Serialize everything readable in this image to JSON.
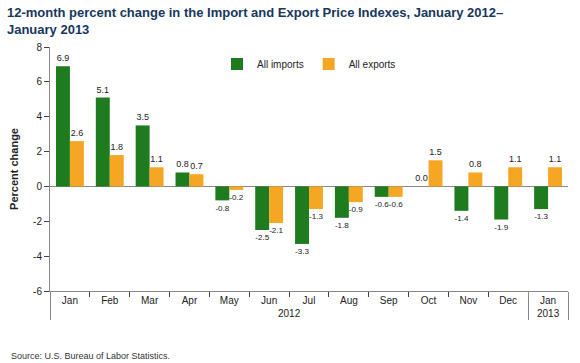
{
  "chart_data": {
    "type": "bar",
    "title": "12-month percent change in the Import and Export Price Indexes, January 2012–\nJanuary 2013",
    "ylabel": "Percent change",
    "categories": [
      "Jan",
      "Feb",
      "Mar",
      "Apr",
      "May",
      "Jun",
      "Jul",
      "Aug",
      "Sep",
      "Oct",
      "Nov",
      "Dec",
      "Jan"
    ],
    "year_groups": [
      {
        "label": "2012",
        "count": 12
      },
      {
        "label": "2013",
        "count": 1
      }
    ],
    "series": [
      {
        "name": "All imports",
        "color": "#1e7b1e",
        "values": [
          6.9,
          5.1,
          3.5,
          0.8,
          -0.8,
          -2.5,
          -3.3,
          -1.8,
          -0.6,
          0.0,
          -1.4,
          -1.9,
          -1.3
        ],
        "value_labels": [
          "6.9",
          "5.1",
          "3.5",
          "0.8",
          "-0.8",
          "-2.5",
          "-3.3",
          "-1.8",
          "-0.6",
          "0.0",
          "-1.4",
          "-1.9",
          "-1.3"
        ]
      },
      {
        "name": "All exports",
        "color": "#f5a623",
        "values": [
          2.6,
          1.8,
          1.1,
          0.7,
          -0.2,
          -2.1,
          -1.3,
          -0.9,
          -0.6,
          1.5,
          0.8,
          1.1,
          1.1
        ],
        "value_labels": [
          "2.6",
          "1.8",
          "1.1",
          "0.7",
          "-0.2",
          "-2.1",
          "-1.3",
          "-0.9",
          "-0.6",
          "1.5",
          "0.8",
          "1.1",
          "1.1"
        ]
      }
    ],
    "ylim": [
      -6,
      8
    ],
    "yticks": [
      -6,
      -4,
      -2,
      0,
      2,
      4,
      6,
      8
    ],
    "grid": false,
    "legend": "top",
    "data_labels": true,
    "annotations": [
      "Source: U.S. Bureau of Labor Statistics."
    ]
  }
}
